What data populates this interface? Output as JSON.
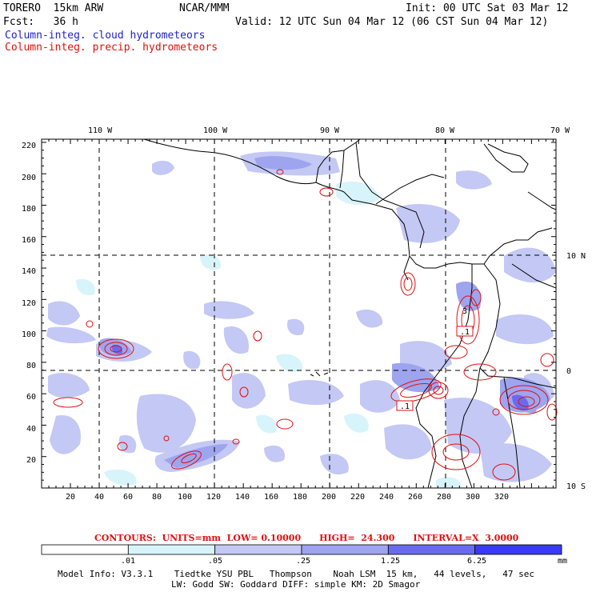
{
  "header": {
    "model": "TORERO  15km ARW",
    "center": "NCAR/MMM",
    "init": "Init: 00 UTC Sat 03 Mar 12",
    "fcst": "Fcst:   36 h",
    "valid": "Valid: 12 UTC Sun 04 Mar 12 (06 CST Sun 04 Mar 12)",
    "legend_cloud": "Column-integ. cloud hydrometeors",
    "legend_precip": "Column-integ. precip. hydrometeors"
  },
  "colors": {
    "cloud_legend": "#1f1fd0",
    "precip_legend": "#e01010",
    "contour": "#e01010",
    "shade_levels": [
      "#ffffff",
      "#d8f4fb",
      "#c4c8f4",
      "#9ea4ee",
      "#6a6af0",
      "#3a3af4"
    ]
  },
  "axes": {
    "top_lon_labels": [
      "110 W",
      "100 W",
      "90 W",
      "80 W",
      "70 W"
    ],
    "right_lat_labels": [
      "10 N",
      "0",
      "10 S"
    ],
    "left_y_ticks": [
      "220",
      "200",
      "180",
      "160",
      "140",
      "120",
      "100",
      "80",
      "60",
      "40",
      "20"
    ],
    "bottom_x_ticks": [
      "20",
      "40",
      "60",
      "80",
      "100",
      "120",
      "140",
      "160",
      "180",
      "200",
      "220",
      "240",
      "260",
      "280",
      "300",
      "320"
    ]
  },
  "contours_info": {
    "text": "CONTOURS:  UNITS=mm  LOW= 0.10000      HIGH=  24.300      INTERVAL=X  3.0000",
    "low": 0.1,
    "high": 24.3,
    "interval_factor": 3.0,
    "units": "mm",
    "inline_labels": [
      ".1",
      ".1",
      "3"
    ]
  },
  "colorbar": {
    "labels": [
      ".01",
      ".05",
      ".25",
      "1.25",
      "6.25",
      "mm"
    ]
  },
  "footer": {
    "line1": "Model Info: V3.3.1    Tiedtke YSU PBL   Thompson    Noah LSM  15 km,   44 levels,   47 sec",
    "line2": "LW: Godd SW: Goddard DIFF: simple KM: 2D Smagor"
  }
}
